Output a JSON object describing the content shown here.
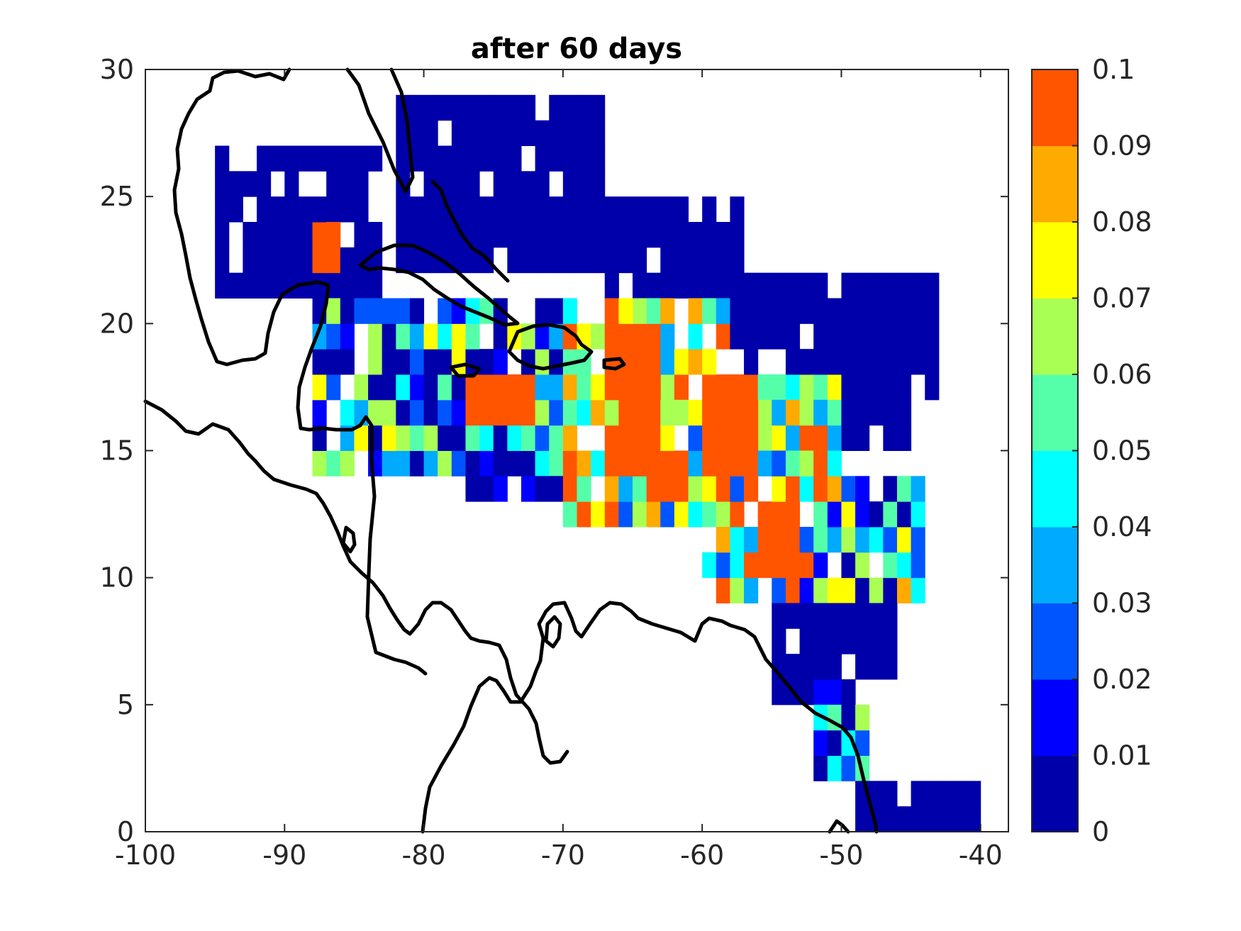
{
  "chart_data": {
    "type": "heatmap",
    "title": "after 60 days",
    "xlabel": "",
    "ylabel": "",
    "xlim": [
      -100,
      -38
    ],
    "ylim": [
      0,
      30
    ],
    "x_ticks": [
      -100,
      -90,
      -80,
      -70,
      -60,
      -50,
      -40
    ],
    "y_ticks": [
      0,
      5,
      10,
      15,
      20,
      25,
      30
    ],
    "grid": false,
    "cell_size_deg": 1,
    "colorbar": {
      "range": [
        0,
        0.1
      ],
      "ticks": [
        0,
        0.01,
        0.02,
        0.03,
        0.04,
        0.05,
        0.06,
        0.07,
        0.08,
        0.09,
        0.1
      ],
      "colors": [
        "#0000aa",
        "#0000ff",
        "#0055ff",
        "#00aaff",
        "#00ffff",
        "#55ffaa",
        "#aaff55",
        "#ffff00",
        "#ffaa00",
        "#ff5500"
      ]
    },
    "regions": [
      {
        "lon": [
          -95,
          -83
        ],
        "lat": [
          21,
          27
        ],
        "value": 0.005
      },
      {
        "lon": [
          -82,
          -67
        ],
        "lat": [
          22,
          29
        ],
        "value": 0.005
      },
      {
        "lon": [
          -67,
          -57
        ],
        "lat": [
          21,
          25
        ],
        "value": 0.005
      },
      {
        "lon": [
          -65,
          -43
        ],
        "lat": [
          17,
          22
        ],
        "value": 0.005
      },
      {
        "lon": [
          -56,
          -45
        ],
        "lat": [
          15,
          18
        ],
        "value": 0.005
      },
      {
        "lon": [
          -88,
          -70
        ],
        "lat": [
          14,
          21
        ],
        "value": 0.03
      },
      {
        "lon": [
          -79,
          -70
        ],
        "lat": [
          13,
          15
        ],
        "value": 0.015
      },
      {
        "lon": [
          -70,
          -58
        ],
        "lat": [
          12,
          21
        ],
        "value": 0.07
      },
      {
        "lon": [
          -60,
          -50
        ],
        "lat": [
          9,
          18
        ],
        "value": 0.06
      },
      {
        "lon": [
          -53,
          -44
        ],
        "lat": [
          9,
          14
        ],
        "value": 0.04
      },
      {
        "lon": [
          -55,
          -46
        ],
        "lat": [
          5,
          9
        ],
        "value": 0.01
      },
      {
        "lon": [
          -52,
          -48
        ],
        "lat": [
          2,
          6
        ],
        "value": 0.03
      },
      {
        "lon": [
          -49,
          -40
        ],
        "lat": [
          0,
          2
        ],
        "value": 0.005
      }
    ],
    "hotspots": [
      {
        "lon": [
          -88,
          -86
        ],
        "lat": [
          22,
          24
        ],
        "value": 0.095
      },
      {
        "lon": [
          -66,
          -63
        ],
        "lat": [
          14,
          20
        ],
        "value": 0.095
      },
      {
        "lon": [
          -64,
          -61
        ],
        "lat": [
          13,
          15
        ],
        "value": 0.095
      },
      {
        "lon": [
          -60,
          -56
        ],
        "lat": [
          14,
          18
        ],
        "value": 0.095
      },
      {
        "lon": [
          -77,
          -72
        ],
        "lat": [
          16,
          18
        ],
        "value": 0.095
      },
      {
        "lon": [
          -56,
          -53
        ],
        "lat": [
          10,
          13
        ],
        "value": 0.095
      }
    ]
  }
}
